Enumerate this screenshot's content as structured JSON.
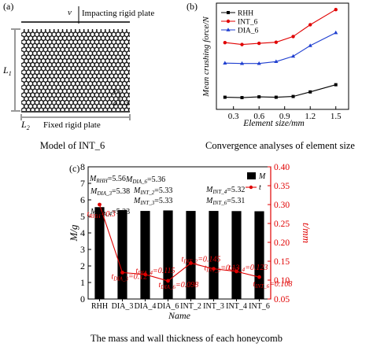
{
  "panels": {
    "a": {
      "tag": "(a)",
      "caption": "Model of INT_6",
      "labels": {
        "v": "v",
        "top_plate": "Impacting rigid plate",
        "bottom_plate": "Fixed rigid plate",
        "l1": "L",
        "l1_sub": "1",
        "l2": "L",
        "l2_sub": "2",
        "y": "y",
        "o": "o",
        "x": "x"
      }
    },
    "b": {
      "tag": "(b)",
      "caption": "Convergence analyses of element size"
    },
    "c": {
      "tag": "(c)",
      "caption": "The mass and wall thickness of each honeycomb"
    }
  },
  "chart_data": [
    {
      "type": "line",
      "panel": "b",
      "title": "",
      "xlabel": "Element size/mm",
      "ylabel": "Mean crushing force/N",
      "x": [
        0.2,
        0.4,
        0.6,
        0.8,
        1.0,
        1.2,
        1.5
      ],
      "xticks": [
        "0.3",
        "0.6",
        "0.9",
        "1.2",
        "1.5"
      ],
      "xtick_values": [
        0.3,
        0.6,
        0.9,
        1.2,
        1.5
      ],
      "xlim": [
        0.1,
        1.65
      ],
      "ylim": [
        100,
        380
      ],
      "yticks_shown": false,
      "legend_position": "top-left",
      "series": [
        {
          "name": "RHH",
          "color": "#000000",
          "marker": "square",
          "values": [
            132,
            131,
            133,
            132,
            134,
            146,
            165
          ]
        },
        {
          "name": "INT_6",
          "color": "#e00000",
          "marker": "circle",
          "values": [
            276,
            271,
            274,
            277,
            292,
            323,
            363
          ]
        },
        {
          "name": "DIA_6",
          "color": "#1f3fd0",
          "marker": "triangle",
          "values": [
            222,
            221,
            221,
            226,
            240,
            268,
            302
          ]
        }
      ]
    },
    {
      "type": "bar",
      "panel": "c",
      "title": "",
      "xlabel": "Name",
      "ylabel": "M/g",
      "ylabel2": "t/mm",
      "categories": [
        "RHH",
        "DIA_3",
        "DIA_4",
        "DIA_6",
        "INT_2",
        "INT_3",
        "INT_4",
        "INT_6"
      ],
      "ylim": [
        0,
        8
      ],
      "yticks": [
        "0",
        "1",
        "2",
        "3",
        "4",
        "5",
        "6",
        "7",
        "8"
      ],
      "ylim2": [
        0.05,
        0.4
      ],
      "yticks2": [
        "0.05",
        "0.10",
        "0.15",
        "0.20",
        "0.25",
        "0.30",
        "0.35",
        "0.40"
      ],
      "legend_position": "top-right",
      "series": [
        {
          "name": "M",
          "color": "#000000",
          "axis": "left",
          "values": [
            5.56,
            5.38,
            5.33,
            5.36,
            5.33,
            5.33,
            5.32,
            5.31
          ]
        },
        {
          "name": "t",
          "color": "#e00000",
          "axis": "right",
          "values": [
            0.3,
            0.12,
            0.115,
            0.098,
            0.145,
            0.13,
            0.123,
            0.108
          ]
        }
      ],
      "annotations": [
        {
          "text": "M",
          "sub": "RHH",
          "value": "=5.56"
        },
        {
          "text": "M",
          "sub": "DIA_3",
          "value": "=5.38"
        },
        {
          "text": "M",
          "sub": "DIA_4",
          "value": "=5.33"
        },
        {
          "text": "M",
          "sub": "DIA_6",
          "value": "=5.36"
        },
        {
          "text": "M",
          "sub": "INT_2",
          "value": "=5.33"
        },
        {
          "text": "M",
          "sub": "INT_3",
          "value": "=5.33"
        },
        {
          "text": "M",
          "sub": "INT_4",
          "value": "=5.32"
        },
        {
          "text": "M",
          "sub": "INT_6",
          "value": "=5.31"
        }
      ],
      "t_labels": [
        {
          "sub": "RHH",
          "value": "0.3"
        },
        {
          "sub": "DIA_3",
          "value": "0.12"
        },
        {
          "sub": "DIA_4",
          "value": "0.115"
        },
        {
          "sub": "DIA_6",
          "value": "0.098"
        },
        {
          "sub": "INT_2",
          "value": "0.145"
        },
        {
          "sub": "INT_3",
          "value": "0.13"
        },
        {
          "sub": "INT_4",
          "value": "0.123"
        },
        {
          "sub": "INT_6",
          "value": "0.108"
        }
      ]
    }
  ]
}
